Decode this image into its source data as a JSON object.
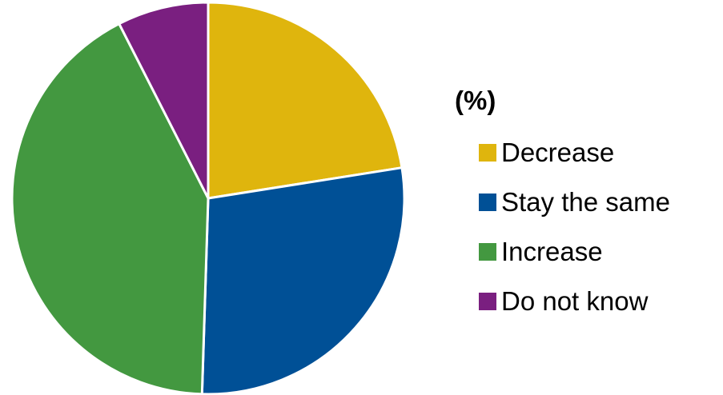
{
  "chart_data": {
    "type": "pie",
    "title": "",
    "legend_title": "(%)",
    "legend_position": "right",
    "start_angle_deg": 0,
    "direction": "clockwise",
    "slices": [
      {
        "label": "Decrease",
        "value": 22.5,
        "color": "#dfb50d"
      },
      {
        "label": "Stay the same",
        "value": 28.0,
        "color": "#005096"
      },
      {
        "label": "Increase",
        "value": 42.0,
        "color": "#439840"
      },
      {
        "label": "Do not know",
        "value": 7.5,
        "color": "#7a1f80"
      }
    ]
  }
}
